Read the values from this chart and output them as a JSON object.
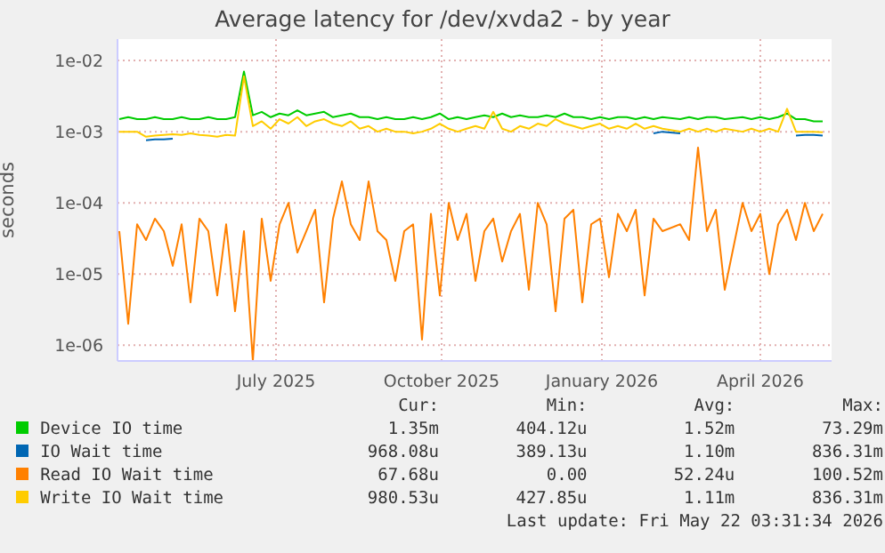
{
  "chart_data": {
    "type": "line",
    "title": "Average latency for /dev/xvda2 - by year",
    "ylabel": "seconds",
    "x": [
      "2025-04-20",
      "2025-04-25",
      "2025-04-30",
      "2025-05-05",
      "2025-05-10",
      "2025-05-15",
      "2025-05-20",
      "2025-05-25",
      "2025-05-30",
      "2025-06-04",
      "2025-06-09",
      "2025-06-14",
      "2025-06-19",
      "2025-06-24",
      "2025-06-29",
      "2025-07-04",
      "2025-07-09",
      "2025-07-14",
      "2025-07-19",
      "2025-07-24",
      "2025-07-29",
      "2025-08-03",
      "2025-08-08",
      "2025-08-13",
      "2025-08-18",
      "2025-08-23",
      "2025-08-28",
      "2025-09-02",
      "2025-09-07",
      "2025-09-12",
      "2025-09-17",
      "2025-09-22",
      "2025-09-27",
      "2025-10-02",
      "2025-10-07",
      "2025-10-12",
      "2025-10-17",
      "2025-10-22",
      "2025-10-27",
      "2025-11-01",
      "2025-11-06",
      "2025-11-11",
      "2025-11-16",
      "2025-11-21",
      "2025-11-26",
      "2025-12-01",
      "2025-12-06",
      "2025-12-11",
      "2025-12-16",
      "2025-12-21",
      "2025-12-26",
      "2025-12-31",
      "2026-01-05",
      "2026-01-10",
      "2026-01-15",
      "2026-01-20",
      "2026-01-25",
      "2026-01-30",
      "2026-02-04",
      "2026-02-09",
      "2026-02-14",
      "2026-02-19",
      "2026-03-01",
      "2026-03-06",
      "2026-03-11",
      "2026-03-16",
      "2026-03-21",
      "2026-03-26",
      "2026-04-05",
      "2026-04-10",
      "2026-04-15",
      "2026-04-20",
      "2026-04-25",
      "2026-04-30",
      "2026-05-05",
      "2026-05-10",
      "2026-05-15",
      "2026-05-20"
    ],
    "series": [
      {
        "name": "Device IO time",
        "color": "#00cc00",
        "values": [
          0.0015,
          0.0016,
          0.0015,
          0.0015,
          0.0016,
          0.0015,
          0.0015,
          0.0016,
          0.0015,
          0.0015,
          0.0016,
          0.0015,
          0.0015,
          0.0016,
          0.007,
          0.0017,
          0.0019,
          0.0016,
          0.0018,
          0.0017,
          0.002,
          0.0017,
          0.0018,
          0.0019,
          0.0016,
          0.0017,
          0.0018,
          0.0016,
          0.0016,
          0.0015,
          0.0016,
          0.0015,
          0.0015,
          0.0016,
          0.0015,
          0.0016,
          0.0018,
          0.0015,
          0.0016,
          0.0015,
          0.0016,
          0.0017,
          0.0016,
          0.0018,
          0.0016,
          0.0017,
          0.0016,
          0.0016,
          0.0017,
          0.0016,
          0.0018,
          0.0016,
          0.0016,
          0.0015,
          0.0016,
          0.0015,
          0.0016,
          0.0016,
          0.0015,
          0.0016,
          0.0015,
          0.0016,
          0.0015,
          0.0016,
          0.0015,
          0.0016,
          0.0016,
          0.0015,
          0.0016,
          0.0015,
          0.0016,
          0.0015,
          0.0016,
          0.0018,
          0.0015,
          0.0015,
          0.0014,
          0.0014
        ]
      },
      {
        "name": "IO Wait time",
        "color": "#0066b3",
        "values": [
          null,
          null,
          null,
          0.00076,
          0.00078,
          0.00078,
          0.0008,
          null,
          null,
          null,
          null,
          null,
          null,
          null,
          null,
          null,
          null,
          null,
          null,
          null,
          null,
          null,
          null,
          null,
          null,
          null,
          null,
          null,
          null,
          null,
          null,
          null,
          null,
          null,
          null,
          null,
          null,
          null,
          null,
          null,
          null,
          null,
          null,
          null,
          null,
          null,
          null,
          null,
          null,
          null,
          null,
          null,
          null,
          null,
          null,
          null,
          null,
          null,
          null,
          null,
          0.00095,
          0.001,
          0.00095,
          null,
          null,
          null,
          null,
          null,
          null,
          null,
          null,
          null,
          null,
          null,
          0.00088,
          0.0009,
          0.0009,
          0.00088
        ]
      },
      {
        "name": "Read IO Wait time",
        "color": "#ff8000",
        "values": [
          4e-05,
          2e-06,
          5e-05,
          3e-05,
          6e-05,
          4e-05,
          1.3e-05,
          5e-05,
          4e-06,
          6e-05,
          4e-05,
          5e-06,
          5e-05,
          3e-06,
          4e-05,
          6e-07,
          6e-05,
          8e-06,
          5e-05,
          0.0001,
          2e-05,
          4e-05,
          8e-05,
          4e-06,
          6e-05,
          0.0002,
          5e-05,
          3e-05,
          0.0002,
          4e-05,
          3e-05,
          8e-06,
          4e-05,
          5e-05,
          1.2e-06,
          7e-05,
          5e-06,
          0.0001,
          3e-05,
          7e-05,
          8e-06,
          4e-05,
          6e-05,
          1.5e-05,
          4e-05,
          7e-05,
          6e-06,
          0.0001,
          5e-05,
          3e-06,
          6e-05,
          8e-05,
          4e-06,
          5e-05,
          6e-05,
          9e-06,
          7e-05,
          4e-05,
          8e-05,
          5e-06,
          6e-05,
          4e-05,
          5e-05,
          3e-05,
          0.0006,
          4e-05,
          8e-05,
          6e-06,
          0.0001,
          4e-05,
          7e-05,
          1e-05,
          5e-05,
          8e-05,
          3e-05,
          0.0001,
          4e-05,
          7e-05
        ]
      },
      {
        "name": "Write IO Wait time",
        "color": "#ffcc00",
        "values": [
          0.001,
          0.001,
          0.001,
          0.00085,
          0.00088,
          0.0009,
          0.00092,
          0.0009,
          0.00095,
          0.0009,
          0.00088,
          0.00085,
          0.0009,
          0.00088,
          0.006,
          0.0012,
          0.0014,
          0.0011,
          0.0015,
          0.0013,
          0.0016,
          0.0012,
          0.0014,
          0.0015,
          0.0013,
          0.0012,
          0.0014,
          0.0011,
          0.0012,
          0.001,
          0.0011,
          0.001,
          0.001,
          0.00095,
          0.001,
          0.0011,
          0.0013,
          0.0011,
          0.001,
          0.0011,
          0.0012,
          0.0011,
          0.0019,
          0.0011,
          0.001,
          0.0012,
          0.0011,
          0.0013,
          0.0012,
          0.0015,
          0.0013,
          0.0012,
          0.0011,
          0.0012,
          0.0013,
          0.0011,
          0.0012,
          0.0011,
          0.0013,
          0.0011,
          0.0012,
          0.0011,
          0.001,
          0.0011,
          0.001,
          0.0011,
          0.001,
          0.0011,
          0.001,
          0.0011,
          0.001,
          0.0011,
          0.001,
          0.0021,
          0.001,
          0.001,
          0.001,
          0.00098
        ]
      }
    ],
    "log": "y",
    "ylim": [
      6e-07,
      0.02
    ],
    "yticks": [
      {
        "value": 1e-06,
        "label": "1e-06"
      },
      {
        "value": 1e-05,
        "label": "1e-05"
      },
      {
        "value": 0.0001,
        "label": "1e-04"
      },
      {
        "value": 0.001,
        "label": "1e-03"
      },
      {
        "value": 0.01,
        "label": "1e-02"
      }
    ],
    "xlim": [
      "2025-04-19",
      "2026-05-25"
    ],
    "xticks": [
      {
        "value": "2025-07-17",
        "label": "July 2025"
      },
      {
        "value": "2025-10-18",
        "label": "October 2025"
      },
      {
        "value": "2026-01-16",
        "label": "January 2026"
      },
      {
        "value": "2026-04-15",
        "label": "April 2026"
      }
    ],
    "grid": true,
    "legend": "bottom",
    "marker": "none",
    "line_style": "solid",
    "annotations": [
      "Cur:",
      "Min:",
      "Avg:",
      "Max:",
      "1.35m",
      "404.12u",
      "1.52m",
      "73.29m",
      "968.08u",
      "389.13u",
      "1.10m",
      "836.31m",
      "67.68u",
      "0.00",
      "52.24u",
      "100.52m",
      "980.53u",
      "427.85u",
      "1.11m",
      "836.31m",
      "Last update: Fri May 22 03:31:34 2026"
    ]
  }
}
